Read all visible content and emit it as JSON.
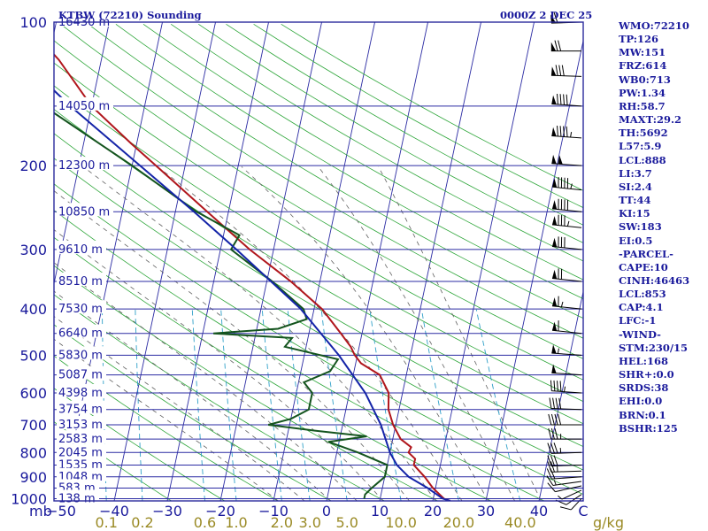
{
  "chart_data": {
    "type": "skew-t sounding",
    "title": "KTBW (72210) Sounding",
    "valid_time": "0000Z  2 DEC 25",
    "pressure_unit": "mb",
    "mixing_ratio_unit": "g/kg",
    "pressure_ticks": [
      100,
      200,
      300,
      400,
      500,
      600,
      700,
      800,
      900,
      1000
    ],
    "temperature_ticks": [
      -50,
      -40,
      -30,
      -20,
      -10,
      0,
      10,
      20,
      30,
      40,
      50
    ],
    "temperature_tick_labels": [
      "−50",
      "−40",
      "−30",
      "−20",
      "−10",
      "0",
      "10",
      "20",
      "30",
      "40",
      "C"
    ],
    "mixing_ratio_labels": [
      "0.1",
      "0.2",
      "0.6",
      "1.0",
      "2.0",
      "3.0",
      "5.0",
      "10.0",
      "20.0",
      "40.0"
    ],
    "height_levels": [
      {
        "p": 100,
        "label": "16430 m"
      },
      {
        "p": 150,
        "label": "14050 m"
      },
      {
        "p": 200,
        "label": "12300 m"
      },
      {
        "p": 250,
        "label": "10850 m"
      },
      {
        "p": 300,
        "label": "9610 m"
      },
      {
        "p": 350,
        "label": "8510 m"
      },
      {
        "p": 400,
        "label": "7530 m"
      },
      {
        "p": 450,
        "label": "6640 m"
      },
      {
        "p": 500,
        "label": "5830 m"
      },
      {
        "p": 550,
        "label": "5087 m"
      },
      {
        "p": 600,
        "label": "4398 m"
      },
      {
        "p": 650,
        "label": "3754 m"
      },
      {
        "p": 700,
        "label": "3153 m"
      },
      {
        "p": 750,
        "label": "2583 m"
      },
      {
        "p": 800,
        "label": "2045 m"
      },
      {
        "p": 850,
        "label": "1535 m"
      },
      {
        "p": 900,
        "label": "1048 m"
      },
      {
        "p": 950,
        "label": "583 m"
      },
      {
        "p": 1000,
        "label": "138 m"
      }
    ],
    "series": [
      {
        "name": "temperature",
        "color": "#b0161c",
        "points": [
          [
            1011,
            23.3
          ],
          [
            1000,
            22
          ],
          [
            950,
            19.5
          ],
          [
            900,
            17.5
          ],
          [
            850,
            15
          ],
          [
            825,
            15
          ],
          [
            800,
            13.5
          ],
          [
            780,
            13.8
          ],
          [
            750,
            11.5
          ],
          [
            700,
            9.5
          ],
          [
            650,
            8.0
          ],
          [
            600,
            7.4
          ],
          [
            550,
            5.0
          ],
          [
            520,
            1.0
          ],
          [
            500,
            -0.5
          ],
          [
            480,
            -1.6
          ],
          [
            450,
            -4.0
          ],
          [
            400,
            -8.5
          ],
          [
            350,
            -15.5
          ],
          [
            300,
            -24.5
          ],
          [
            250,
            -34
          ],
          [
            200,
            -45.5
          ],
          [
            180,
            -51
          ],
          [
            150,
            -60
          ],
          [
            120,
            -68
          ],
          [
            100,
            -76
          ]
        ]
      },
      {
        "name": "dewpoint",
        "color": "#14541e",
        "points": [
          [
            1000,
            7.0
          ],
          [
            980,
            7.0
          ],
          [
            950,
            8.0
          ],
          [
            900,
            10.0
          ],
          [
            850,
            10.0
          ],
          [
            800,
            4.0
          ],
          [
            760,
            -2.0
          ],
          [
            740,
            5.0
          ],
          [
            720,
            -5.0
          ],
          [
            700,
            -14.0
          ],
          [
            680,
            -10.0
          ],
          [
            650,
            -7.0
          ],
          [
            600,
            -7.0
          ],
          [
            570,
            -9.0
          ],
          [
            540,
            -4.5
          ],
          [
            510,
            -3.5
          ],
          [
            480,
            -14.0
          ],
          [
            460,
            -13.0
          ],
          [
            450,
            -28.0
          ],
          [
            440,
            -16.0
          ],
          [
            420,
            -11.0
          ],
          [
            400,
            -12.0
          ],
          [
            350,
            -19.0
          ],
          [
            300,
            -28.0
          ],
          [
            280,
            -27.0
          ],
          [
            250,
            -36.0
          ],
          [
            200,
            -50.0
          ],
          [
            150,
            -69.0
          ],
          [
            130,
            -72.0
          ],
          [
            100,
            -84.0
          ]
        ]
      },
      {
        "name": "parcel",
        "color": "#1424a8",
        "points": [
          [
            1011,
            23.3
          ],
          [
            1000,
            21.8
          ],
          [
            950,
            18.5
          ],
          [
            900,
            14.5
          ],
          [
            850,
            11.8
          ],
          [
            800,
            10.0
          ],
          [
            700,
            7.2
          ],
          [
            600,
            3.0
          ],
          [
            500,
            -3.5
          ],
          [
            400,
            -12.5
          ],
          [
            300,
            -27.0
          ],
          [
            250,
            -36.5
          ],
          [
            200,
            -48.5
          ],
          [
            150,
            -64.0
          ],
          [
            130,
            -71.0
          ],
          [
            115,
            -77.0
          ]
        ]
      }
    ]
  },
  "indices": [
    "WMO:72210",
    "TP:126",
    "MW:151",
    "FRZ:614",
    "WB0:713",
    "PW:1.34",
    "RH:58.7",
    "MAXT:29.2",
    "TH:5692",
    "L57:5.9",
    "LCL:888",
    "LI:3.7",
    "SI:2.4",
    "TT:44",
    "KI:15",
    "SW:183",
    "EI:0.5",
    "-PARCEL-",
    "CAPE:10",
    "CINH:46463",
    "LCL:853",
    "CAP:4.1",
    "LFC:-1",
    "-WIND-",
    "STM:230/15",
    "HEL:168",
    "SHR+:0.0",
    "SRDS:38",
    "EHI:0.0",
    "BRN:0.1",
    "BSHR:125"
  ],
  "wind_profile": [
    {
      "p": 1000,
      "dir": 200,
      "spd": 10
    },
    {
      "p": 980,
      "dir": 210,
      "spd": 10
    },
    {
      "p": 960,
      "dir": 220,
      "spd": 5
    },
    {
      "p": 940,
      "dir": 240,
      "spd": 10
    },
    {
      "p": 920,
      "dir": 250,
      "spd": 15
    },
    {
      "p": 900,
      "dir": 260,
      "spd": 20
    },
    {
      "p": 875,
      "dir": 265,
      "spd": 25
    },
    {
      "p": 850,
      "dir": 265,
      "spd": 30
    },
    {
      "p": 800,
      "dir": 265,
      "spd": 35
    },
    {
      "p": 750,
      "dir": 270,
      "spd": 35
    },
    {
      "p": 700,
      "dir": 270,
      "spd": 40
    },
    {
      "p": 650,
      "dir": 275,
      "spd": 40
    },
    {
      "p": 600,
      "dir": 280,
      "spd": 45
    },
    {
      "p": 550,
      "dir": 280,
      "spd": 50
    },
    {
      "p": 500,
      "dir": 280,
      "spd": 55
    },
    {
      "p": 450,
      "dir": 285,
      "spd": 60
    },
    {
      "p": 400,
      "dir": 285,
      "spd": 65
    },
    {
      "p": 350,
      "dir": 285,
      "spd": 70
    },
    {
      "p": 300,
      "dir": 285,
      "spd": 80
    },
    {
      "p": 270,
      "dir": 285,
      "spd": 85
    },
    {
      "p": 250,
      "dir": 285,
      "spd": 90
    },
    {
      "p": 225,
      "dir": 285,
      "spd": 95
    },
    {
      "p": 200,
      "dir": 280,
      "spd": 100
    },
    {
      "p": 175,
      "dir": 280,
      "spd": 95
    },
    {
      "p": 150,
      "dir": 280,
      "spd": 90
    },
    {
      "p": 130,
      "dir": 275,
      "spd": 80
    },
    {
      "p": 115,
      "dir": 270,
      "spd": 70
    },
    {
      "p": 100,
      "dir": 265,
      "spd": 60
    }
  ]
}
